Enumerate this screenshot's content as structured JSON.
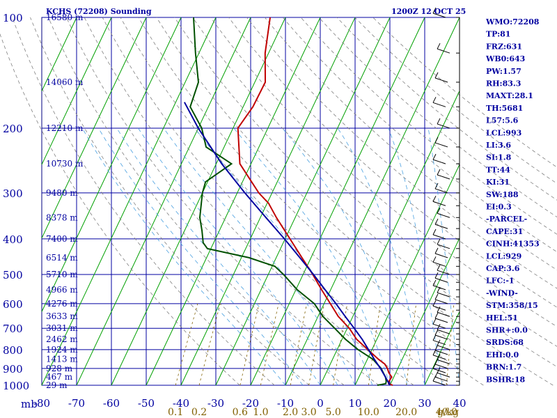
{
  "chart_data": {
    "type": "line",
    "title": "KCHS (72208) Sounding",
    "time_label": "1200Z 12 OCT 25",
    "pressure_unit": "mb",
    "mixing_ratio_unit": "g/kg",
    "xlim": [
      -80,
      40
    ],
    "ylim": [
      1000,
      100
    ],
    "pressure_ticks": [
      100,
      200,
      300,
      400,
      500,
      600,
      700,
      800,
      900,
      1000
    ],
    "temperature_ticks": [
      -80,
      -70,
      -60,
      -50,
      -40,
      -30,
      -20,
      -10,
      0,
      10,
      20,
      30,
      40
    ],
    "mixing_ratio_ticks": [
      "0.1",
      "0.2",
      "0.6",
      "1.0",
      "2.0",
      "3.0",
      "5.0",
      "10.0",
      "20.0",
      "40.0"
    ],
    "height_labels": [
      {
        "p": 100,
        "label": "16580 m"
      },
      {
        "p": 150,
        "label": "14060 m"
      },
      {
        "p": 200,
        "label": "12210 m"
      },
      {
        "p": 250,
        "label": "10730 m"
      },
      {
        "p": 300,
        "label": "9480 m"
      },
      {
        "p": 350,
        "label": "8378 m"
      },
      {
        "p": 400,
        "label": "7400 m"
      },
      {
        "p": 450,
        "label": "6514 m"
      },
      {
        "p": 500,
        "label": "5710 m"
      },
      {
        "p": 550,
        "label": "4966 m"
      },
      {
        "p": 600,
        "label": "4276 m"
      },
      {
        "p": 650,
        "label": "3633 m"
      },
      {
        "p": 700,
        "label": "3031 m"
      },
      {
        "p": 750,
        "label": "2462 m"
      },
      {
        "p": 800,
        "label": "1924 m"
      },
      {
        "p": 850,
        "label": "1413 m"
      },
      {
        "p": 900,
        "label": "928 m"
      },
      {
        "p": 950,
        "label": "467 m"
      },
      {
        "p": 1000,
        "label": "29 m"
      }
    ],
    "series": [
      {
        "name": "Temperature",
        "color": "#c00000",
        "points": [
          [
            1000,
            20.8
          ],
          [
            990,
            19.4
          ],
          [
            975,
            19.2
          ],
          [
            950,
            19.4
          ],
          [
            925,
            18.0
          ],
          [
            900,
            17.0
          ],
          [
            875,
            15.6
          ],
          [
            850,
            13.2
          ],
          [
            800,
            8.8
          ],
          [
            750,
            4.2
          ],
          [
            700,
            0.6
          ],
          [
            650,
            -4.2
          ],
          [
            600,
            -8.2
          ],
          [
            550,
            -12.6
          ],
          [
            500,
            -17.2
          ],
          [
            450,
            -22.6
          ],
          [
            400,
            -28.6
          ],
          [
            350,
            -35.4
          ],
          [
            320,
            -39.6
          ],
          [
            300,
            -43.8
          ],
          [
            250,
            -53.2
          ],
          [
            200,
            -58.6
          ],
          [
            175,
            -57.2
          ],
          [
            150,
            -57.0
          ],
          [
            125,
            -61.0
          ],
          [
            100,
            -64.4
          ]
        ]
      },
      {
        "name": "Dewpoint",
        "color": "#005000",
        "points": [
          [
            1000,
            16.4
          ],
          [
            990,
            18.6
          ],
          [
            975,
            18.4
          ],
          [
            950,
            17.6
          ],
          [
            925,
            16.4
          ],
          [
            900,
            15.2
          ],
          [
            850,
            11.6
          ],
          [
            800,
            6.0
          ],
          [
            750,
            1.0
          ],
          [
            700,
            -3.6
          ],
          [
            650,
            -8.6
          ],
          [
            600,
            -12.8
          ],
          [
            550,
            -19.6
          ],
          [
            500,
            -25.6
          ],
          [
            475,
            -29.2
          ],
          [
            450,
            -37.8
          ],
          [
            425,
            -51.0
          ],
          [
            410,
            -53.0
          ],
          [
            380,
            -55.0
          ],
          [
            350,
            -57.4
          ],
          [
            300,
            -60.0
          ],
          [
            280,
            -60.6
          ],
          [
            250,
            -55.6
          ],
          [
            225,
            -65.2
          ],
          [
            200,
            -69.0
          ],
          [
            175,
            -75.2
          ],
          [
            150,
            -76.2
          ],
          [
            125,
            -81.0
          ],
          [
            100,
            -86.4
          ]
        ]
      },
      {
        "name": "Parcel",
        "color": "#0000a0",
        "points": [
          [
            1000,
            20.0
          ],
          [
            950,
            17.6
          ],
          [
            900,
            15.0
          ],
          [
            850,
            12.0
          ],
          [
            800,
            9.0
          ],
          [
            750,
            5.8
          ],
          [
            700,
            2.0
          ],
          [
            650,
            -2.2
          ],
          [
            600,
            -6.6
          ],
          [
            550,
            -11.6
          ],
          [
            500,
            -17.0
          ],
          [
            450,
            -23.2
          ],
          [
            400,
            -30.2
          ],
          [
            350,
            -38.4
          ],
          [
            300,
            -47.8
          ],
          [
            250,
            -58.4
          ],
          [
            200,
            -70.0
          ],
          [
            170,
            -77.5
          ]
        ]
      }
    ],
    "indices": [
      "WMO:72208",
      "TP:81",
      "FRZ:631",
      "WB0:643",
      "PW:1.57",
      "RH:83.3",
      "MAXT:28.1",
      "TH:5681",
      "L57:5.6",
      "LCL:993",
      "LI:3.6",
      "SI:1.8",
      "TT:44",
      "KI:31",
      "SW:188",
      "EI:0.3",
      "-PARCEL-",
      "CAPE:31",
      "CINH:41353",
      "LCL:929",
      "CAP:3.6",
      "LFC:-1",
      "-WIND-",
      "STM:358/15",
      "HEL:51",
      "SHR+:0.0",
      "SRDS:68",
      "EHI:0.0",
      "BRN:1.7",
      "BSHR:18"
    ]
  }
}
